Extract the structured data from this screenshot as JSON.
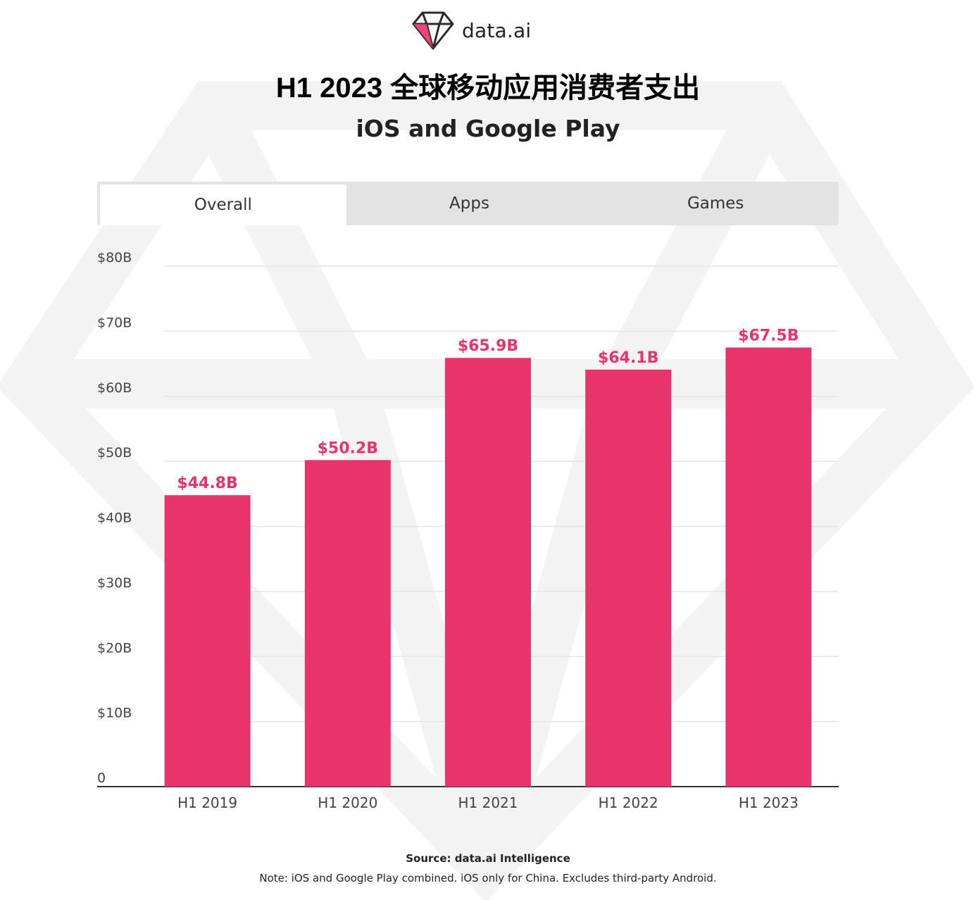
{
  "brand": {
    "logo_text": "data.ai",
    "accent_color": "#e8336c"
  },
  "header": {
    "title": "H1 2023 全球移动应用消费者支出",
    "subtitle": "iOS and Google Play"
  },
  "tabs": [
    {
      "label": "Overall",
      "active": true
    },
    {
      "label": "Apps",
      "active": false
    },
    {
      "label": "Games",
      "active": false
    }
  ],
  "chart_data": {
    "type": "bar",
    "categories": [
      "H1 2019",
      "H1 2020",
      "H1 2021",
      "H1 2022",
      "H1 2023"
    ],
    "values": [
      44.8,
      50.2,
      65.9,
      64.1,
      67.5
    ],
    "data_labels": [
      "$44.8B",
      "$50.2B",
      "$65.9B",
      "$64.1B",
      "$67.5B"
    ],
    "yticks": [
      0,
      10,
      20,
      30,
      40,
      50,
      60,
      70,
      80
    ],
    "ytick_labels": [
      "0",
      "$10B",
      "$20B",
      "$30B",
      "$40B",
      "$50B",
      "$60B",
      "$70B",
      "$80B"
    ],
    "ylim": [
      0,
      80
    ],
    "grid": true,
    "bar_color": "#e8336c"
  },
  "footer": {
    "source": "Source: data.ai Intelligence",
    "note": "Note: iOS and Google Play combined. iOS only for China. Excludes third-party Android."
  }
}
